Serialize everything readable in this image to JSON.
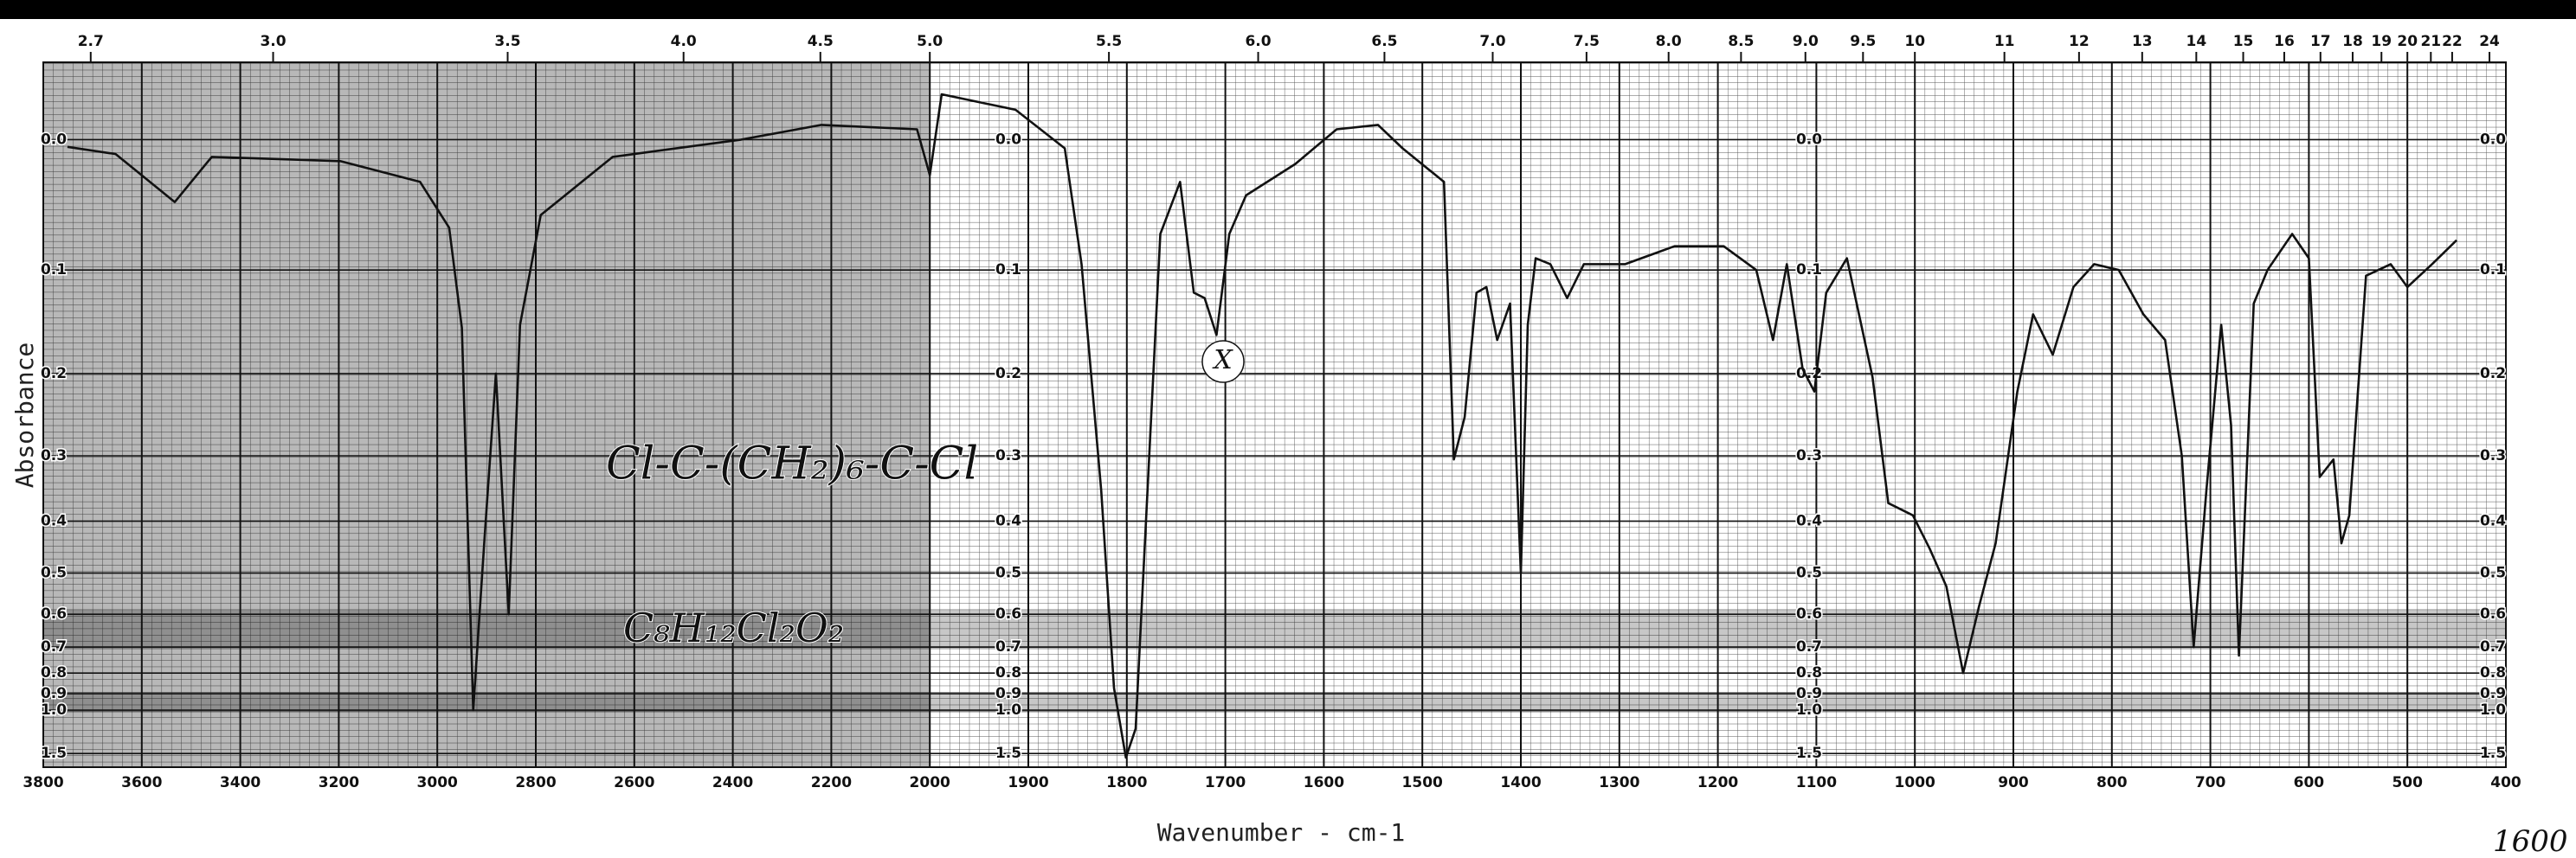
{
  "chart_data": {
    "type": "line",
    "xlabel": "Wavenumber - cm-1",
    "ylabel": "Absorbance",
    "xlim": [
      3800,
      400
    ],
    "xticks": [
      3800,
      3600,
      3400,
      3200,
      3000,
      2800,
      2600,
      2400,
      2200,
      2000,
      1900,
      1800,
      1700,
      1600,
      1500,
      1400,
      1300,
      1200,
      1100,
      1000,
      900,
      800,
      700,
      600,
      500,
      400
    ],
    "x2scale": "wavelength-um",
    "x2ticks": [
      2.7,
      {
        "value": 3,
        "label": "3.0"
      },
      3.5,
      {
        "value": 4,
        "label": "4.0"
      },
      4.5,
      {
        "value": 5,
        "label": "5.0"
      },
      5.5,
      {
        "value": 6,
        "label": "6.0"
      },
      6.5,
      {
        "value": 7,
        "label": "7.0"
      },
      7.5,
      {
        "value": 8,
        "label": "8.0"
      },
      8.5,
      {
        "value": 9,
        "label": "9.0"
      },
      9.5,
      10,
      11,
      12,
      13,
      14,
      15,
      16,
      17,
      18,
      19,
      20,
      21,
      22,
      24
    ],
    "yscale": "transmittance",
    "ylim": [
      -0.05,
      2
    ],
    "yticks": [
      {
        "value": 0,
        "label": "0.0"
      },
      0.1,
      0.2,
      0.3,
      0.4,
      0.5,
      0.6,
      0.7,
      0.8,
      0.9,
      {
        "value": 1,
        "label": "1.0"
      },
      1.5
    ],
    "grid": true,
    "color": "#111111",
    "x": [
      3751,
      3653,
      3533,
      3458,
      3197,
      3035,
      2976,
      2950,
      2927,
      2904,
      2881,
      2855,
      2832,
      2790,
      2644,
      2383,
      2220,
      2026,
      2000,
      1988,
      1913,
      1863,
      1846,
      1826,
      1813,
      1801,
      1791,
      1779,
      1766,
      1746,
      1732,
      1721,
      1709,
      1696,
      1679,
      1629,
      1587,
      1545,
      1520,
      1478,
      1468,
      1457,
      1445,
      1435,
      1424,
      1411,
      1400,
      1393,
      1385,
      1370,
      1353,
      1336,
      1294,
      1244,
      1194,
      1161,
      1144,
      1130,
      1114,
      1102,
      1090,
      1069,
      1043,
      1027,
      1002,
      985,
      968,
      951,
      935,
      918,
      896,
      880,
      860,
      839,
      818,
      793,
      768,
      746,
      729,
      717,
      704,
      689,
      679,
      671,
      656,
      642,
      617,
      600,
      589,
      575,
      567,
      559,
      542,
      517,
      500,
      475,
      450
    ],
    "values": [
      0.005,
      0.01,
      0.045,
      0.012,
      0.015,
      0.03,
      0.065,
      0.153,
      1.0,
      0.43,
      0.2,
      0.6,
      0.15,
      0.055,
      0.012,
      0,
      -0.01,
      -0.007,
      0.025,
      -0.03,
      -0.02,
      0.006,
      0.095,
      0.35,
      0.87,
      1.6,
      1.15,
      0.35,
      0.07,
      0.03,
      0.12,
      0.125,
      0.16,
      0.07,
      0.04,
      0.017,
      -0.007,
      -0.01,
      0.006,
      0.03,
      0.305,
      0.25,
      0.12,
      0.115,
      0.165,
      0.13,
      0.5,
      0.15,
      0.09,
      0.095,
      0.125,
      0.095,
      0.095,
      0.08,
      0.08,
      0.1,
      0.165,
      0.095,
      0.195,
      0.22,
      0.12,
      0.09,
      0.204,
      0.37,
      0.39,
      0.45,
      0.53,
      0.8,
      0.58,
      0.44,
      0.22,
      0.14,
      0.18,
      0.115,
      0.095,
      0.1,
      0.14,
      0.165,
      0.3,
      0.7,
      0.35,
      0.15,
      0.26,
      0.73,
      0.13,
      0.1,
      0.07,
      0.09,
      0.33,
      0.305,
      0.44,
      0.39,
      0.105,
      0.095,
      0.115,
      0.095,
      0.075
    ],
    "annotations": [
      "Cl-C-(CH₂)₆-C-Cl",
      "C₈H₁₂Cl₂O₂",
      "X",
      "1600"
    ]
  }
}
